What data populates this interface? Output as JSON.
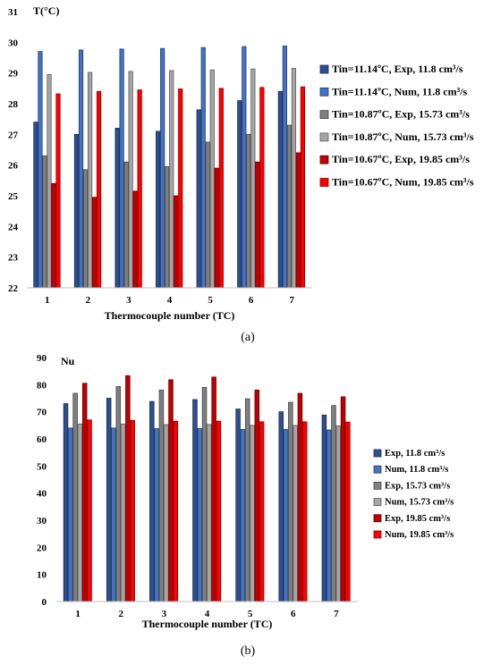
{
  "chart_data": [
    {
      "type": "bar",
      "panel_label": "(a)",
      "ylabel": "T(°C)",
      "xlabel": "Thermocouple number (TC)",
      "ylim": [
        22,
        31
      ],
      "yticks": [
        22,
        23,
        24,
        25,
        26,
        27,
        28,
        29,
        30,
        31
      ],
      "categories": [
        "1",
        "2",
        "3",
        "4",
        "5",
        "6",
        "7"
      ],
      "legend_position": "right",
      "series": [
        {
          "name": "Tin=11.14ºC, Exp, 11.8 cm³/s",
          "color": "#2e4f8e",
          "values": [
            27.4,
            27.0,
            27.2,
            27.1,
            27.8,
            28.1,
            28.4
          ]
        },
        {
          "name": "Tin=11.14ºC, Num, 11.8 cm³/s",
          "color": "#4472c4",
          "values": [
            29.7,
            29.75,
            29.78,
            29.8,
            29.83,
            29.86,
            29.88
          ]
        },
        {
          "name": "Tin=10.87ºC, Exp, 15.73 cm³/s",
          "color": "#7f7f7f",
          "values": [
            26.3,
            25.85,
            26.1,
            25.95,
            26.75,
            27.0,
            27.3
          ]
        },
        {
          "name": "Tin=10.87ºC, Num, 15.73 cm³/s",
          "color": "#a5a5a5",
          "values": [
            28.95,
            29.02,
            29.05,
            29.08,
            29.1,
            29.13,
            29.15
          ]
        },
        {
          "name": "Tin=10.67ºC, Exp, 19.85 cm³/s",
          "color": "#c00000",
          "values": [
            25.4,
            24.95,
            25.15,
            25.0,
            25.9,
            26.1,
            26.4
          ]
        },
        {
          "name": "Tin=10.67ºC, Num, 19.85 cm³/s",
          "color": "#ff0000",
          "values": [
            28.32,
            28.4,
            28.45,
            28.48,
            28.5,
            28.53,
            28.55
          ]
        }
      ]
    },
    {
      "type": "bar",
      "panel_label": "(b)",
      "ylabel": "Nu",
      "xlabel": "Thermocouple number (TC)",
      "ylim": [
        0,
        90
      ],
      "yticks": [
        0,
        10,
        20,
        30,
        40,
        50,
        60,
        70,
        80,
        90
      ],
      "categories": [
        "1",
        "2",
        "3",
        "4",
        "5",
        "6",
        "7"
      ],
      "legend_position": "right",
      "series": [
        {
          "name": "Exp, 11.8 cm³/s",
          "color": "#2e4f8e",
          "values": [
            73,
            75,
            73.8,
            74.5,
            71,
            70,
            68.8
          ]
        },
        {
          "name": "Num, 11.8 cm³/s",
          "color": "#4472c4",
          "values": [
            64,
            64,
            63.8,
            63.8,
            63.5,
            63.5,
            63.3
          ]
        },
        {
          "name": "Exp, 15.73 cm³/s",
          "color": "#7f7f7f",
          "values": [
            76.8,
            79.3,
            78,
            79,
            74.8,
            73.5,
            72.3
          ]
        },
        {
          "name": "Num, 15.73 cm³/s",
          "color": "#a5a5a5",
          "values": [
            65.5,
            65.5,
            65.3,
            65.3,
            65,
            65,
            64.8
          ]
        },
        {
          "name": "Exp, 19.85 cm³/s",
          "color": "#c00000",
          "values": [
            80.5,
            83.3,
            81.8,
            82.8,
            78,
            76.8,
            75.5
          ]
        },
        {
          "name": "Num, 19.85 cm³/s",
          "color": "#ff0000",
          "values": [
            67,
            66.8,
            66.5,
            66.5,
            66.3,
            66.3,
            66.2
          ]
        }
      ]
    }
  ]
}
